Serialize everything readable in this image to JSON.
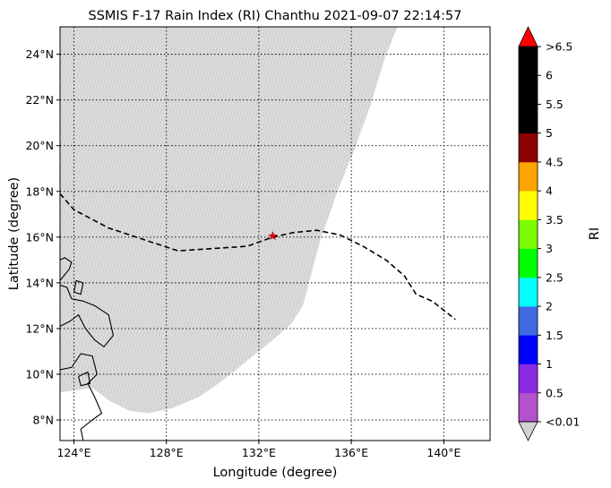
{
  "title": "SSMIS F-17 Rain Index (RI) Chanthu 2021-09-07 22:14:57",
  "x_label": "Longitude (degree)",
  "y_label": "Latitude (degree)",
  "colorbar_label": "RI",
  "lon_ticks": [
    {
      "value": 124,
      "label": "124°E"
    },
    {
      "value": 128,
      "label": "128°E"
    },
    {
      "value": 132,
      "label": "132°E"
    },
    {
      "value": 136,
      "label": "136°E"
    },
    {
      "value": 140,
      "label": "140°E"
    }
  ],
  "lat_ticks": [
    {
      "value": 8,
      "label": "8°N"
    },
    {
      "value": 10,
      "label": "10°N"
    },
    {
      "value": 12,
      "label": "12°N"
    },
    {
      "value": 14,
      "label": "14°N"
    },
    {
      "value": 16,
      "label": "16°N"
    },
    {
      "value": 18,
      "label": "18°N"
    },
    {
      "value": 20,
      "label": "20°N"
    },
    {
      "value": 22,
      "label": "22°N"
    },
    {
      "value": 24,
      "label": "24°N"
    }
  ],
  "colorbar": {
    "under_color": "#d3d3d3",
    "over_color": "#ff0000",
    "bins": [
      {
        "color": "#b452cd"
      },
      {
        "color": "#8a2be2"
      },
      {
        "color": "#0000ff"
      },
      {
        "color": "#4169e1"
      },
      {
        "color": "#00ffff"
      },
      {
        "color": "#00ff00"
      },
      {
        "color": "#7cfc00"
      },
      {
        "color": "#ffff00"
      },
      {
        "color": "#ffa500"
      },
      {
        "color": "#8b0000"
      },
      {
        "color": "#000000"
      },
      {
        "color": "#000000"
      },
      {
        "color": "#000000"
      }
    ],
    "tick_labels": [
      "<0.01",
      "0.5",
      "1",
      "1.5",
      "2",
      "2.5",
      "3",
      "3.5",
      "4",
      "4.5",
      "5",
      "5.5",
      "6",
      ">6.5"
    ]
  },
  "chart_data": {
    "type": "map",
    "title": "SSMIS F-17 Rain Index (RI) Chanthu 2021-09-07 22:14:57",
    "xlabel": "Longitude (degree)",
    "ylabel": "Latitude (degree)",
    "xlim": [
      123.4,
      142.0
    ],
    "ylim": [
      7.1,
      25.2
    ],
    "grid": true,
    "swath_color": "#d3d3d3",
    "swath_boundary": [
      [
        123.4,
        25.2
      ],
      [
        138.0,
        25.2
      ],
      [
        137.5,
        24.0
      ],
      [
        136.9,
        22.0
      ],
      [
        136.2,
        20.0
      ],
      [
        135.4,
        18.0
      ],
      [
        134.7,
        16.0
      ],
      [
        134.3,
        14.5
      ],
      [
        133.9,
        13.0
      ],
      [
        133.4,
        12.2
      ],
      [
        132.6,
        11.5
      ],
      [
        131.5,
        10.6
      ],
      [
        130.4,
        9.7
      ],
      [
        129.4,
        9.0
      ],
      [
        128.2,
        8.5
      ],
      [
        127.2,
        8.3
      ],
      [
        126.4,
        8.4
      ],
      [
        125.6,
        8.8
      ],
      [
        124.8,
        9.4
      ],
      [
        123.4,
        9.2
      ]
    ],
    "track": [
      [
        123.4,
        17.9
      ],
      [
        124.0,
        17.2
      ],
      [
        125.5,
        16.4
      ],
      [
        127.0,
        15.9
      ],
      [
        128.5,
        15.4
      ],
      [
        130.0,
        15.5
      ],
      [
        131.5,
        15.6
      ],
      [
        132.6,
        16.0
      ],
      [
        133.5,
        16.2
      ],
      [
        134.5,
        16.3
      ],
      [
        135.5,
        16.1
      ],
      [
        136.5,
        15.6
      ],
      [
        137.5,
        15.0
      ],
      [
        138.3,
        14.3
      ],
      [
        138.8,
        13.5
      ],
      [
        139.5,
        13.2
      ],
      [
        140.0,
        12.8
      ],
      [
        140.5,
        12.4
      ]
    ],
    "storm_position": [
      132.6,
      16.05
    ],
    "coastlines": [
      [
        [
          124.4,
          7.1
        ],
        [
          124.3,
          7.6
        ],
        [
          124.8,
          8.0
        ],
        [
          125.2,
          8.3
        ],
        [
          124.9,
          9.0
        ],
        [
          124.6,
          9.6
        ],
        [
          125.0,
          10.0
        ],
        [
          124.8,
          10.8
        ],
        [
          124.3,
          10.9
        ],
        [
          123.9,
          10.3
        ],
        [
          123.4,
          10.2
        ]
      ],
      [
        [
          123.4,
          12.1
        ],
        [
          123.8,
          12.3
        ],
        [
          124.2,
          12.6
        ],
        [
          124.5,
          12.0
        ],
        [
          124.9,
          11.5
        ],
        [
          125.3,
          11.2
        ],
        [
          125.7,
          11.7
        ],
        [
          125.5,
          12.6
        ],
        [
          124.9,
          13.0
        ],
        [
          124.4,
          13.2
        ],
        [
          123.9,
          13.3
        ],
        [
          123.7,
          13.8
        ],
        [
          123.4,
          13.9
        ]
      ],
      [
        [
          124.0,
          13.6
        ],
        [
          124.3,
          13.5
        ],
        [
          124.4,
          14.0
        ],
        [
          124.1,
          14.1
        ],
        [
          124.0,
          13.6
        ]
      ],
      [
        [
          123.4,
          14.1
        ],
        [
          123.8,
          14.6
        ],
        [
          123.9,
          14.9
        ],
        [
          123.6,
          15.1
        ],
        [
          123.4,
          15.0
        ]
      ],
      [
        [
          124.2,
          9.9
        ],
        [
          124.6,
          10.1
        ],
        [
          124.7,
          9.6
        ],
        [
          124.3,
          9.5
        ],
        [
          124.2,
          9.9
        ]
      ]
    ]
  }
}
